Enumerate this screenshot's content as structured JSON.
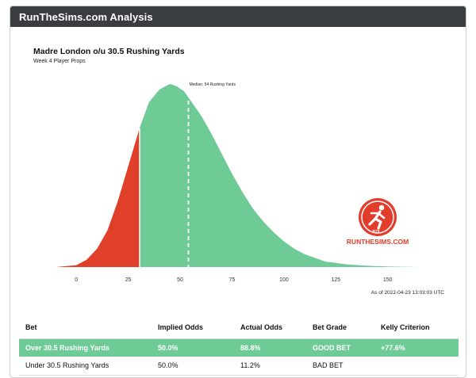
{
  "window": {
    "title": "RunTheSims.com Analysis"
  },
  "chart_data": {
    "type": "area",
    "title": "Madre London o/u 30.5 Rushing Yards",
    "subtitle": "Week 4 Player Props",
    "xlabel": "",
    "ylabel": "",
    "xlim": [
      -10,
      165
    ],
    "xticks": [
      0,
      25,
      50,
      75,
      100,
      125,
      150
    ],
    "threshold": 30.5,
    "median": 54,
    "median_label": "Median: 54 Rushing Yards",
    "under_color": "#e0402a",
    "over_color": "#6ecb95",
    "grid": false,
    "series": [
      {
        "x": [
          -10,
          0,
          5,
          10,
          15,
          20,
          25,
          30.5,
          35,
          40,
          45,
          48,
          52,
          55,
          60,
          65,
          70,
          75,
          80,
          85,
          90,
          95,
          100,
          105,
          110,
          115,
          120,
          130,
          140,
          150,
          165
        ],
        "values": [
          0.0,
          0.01,
          0.04,
          0.1,
          0.2,
          0.36,
          0.55,
          0.76,
          0.9,
          0.97,
          1.0,
          0.99,
          0.96,
          0.91,
          0.83,
          0.73,
          0.62,
          0.51,
          0.41,
          0.32,
          0.25,
          0.19,
          0.14,
          0.1,
          0.07,
          0.05,
          0.03,
          0.015,
          0.007,
          0.003,
          0.0
        ]
      }
    ]
  },
  "logo": {
    "name": "RunTheSims logo",
    "badge_text": "RTS",
    "wordmark": "RUNTHESIMS.COM"
  },
  "timestamp": "As of 2022-04-23 13:03:03 UTC",
  "table": {
    "headers": [
      "Bet",
      "Implied Odds",
      "Actual Odds",
      "Bet Grade",
      "Kelly Criterion"
    ],
    "rows": [
      {
        "bet": "Over 30.5 Rushing Yards",
        "implied": "50.0%",
        "actual": "88.8%",
        "grade": "GOOD BET",
        "kelly": "+77.6%"
      },
      {
        "bet": "Under 30.5 Rushing Yards",
        "implied": "50.0%",
        "actual": "11.2%",
        "grade": "BAD BET",
        "kelly": ""
      }
    ]
  }
}
